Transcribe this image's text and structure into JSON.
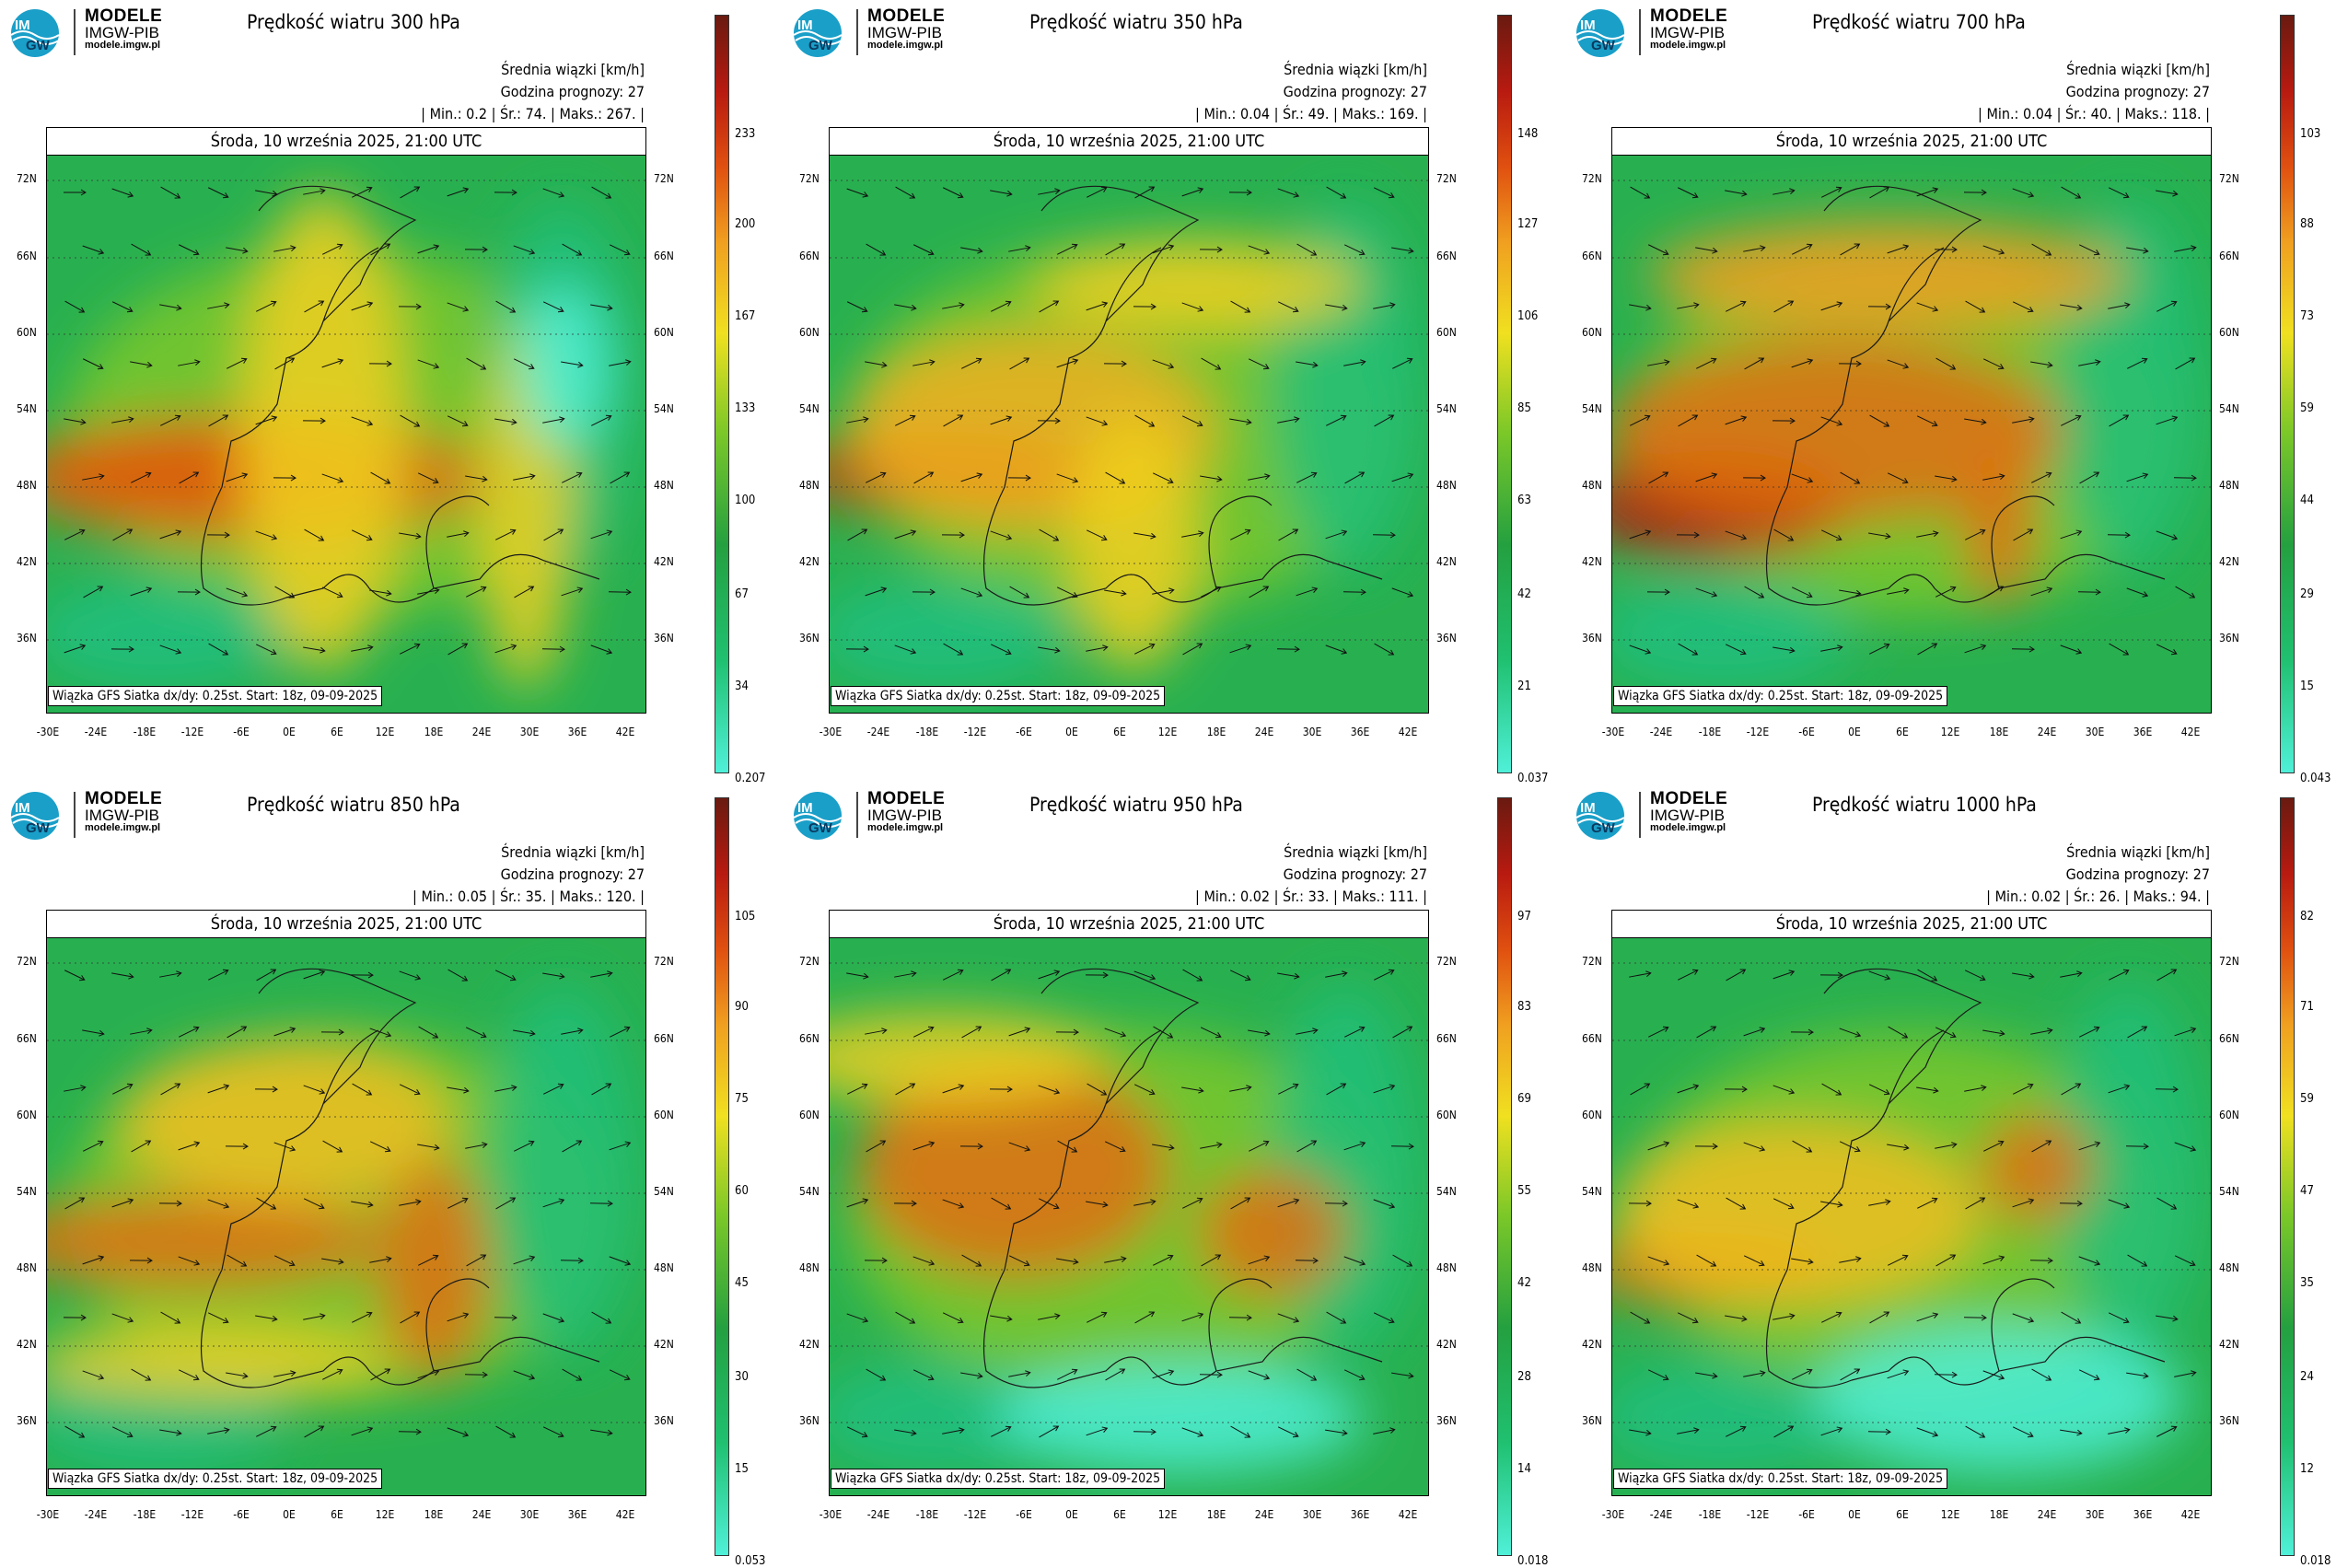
{
  "logo": {
    "line1": "MODELE",
    "line2": "IMGW-PIB",
    "line3": "modele.imgw.pl"
  },
  "common": {
    "units": "Średnia wiązki [km/h]",
    "forecast": "Godzina prognozy: 27",
    "date": "Środa, 10 września 2025, 21:00 UTC",
    "footer": "Wiązka GFS Siatka dx/dy: 0.25st. Start: 18z, 09-09-2025",
    "lat_labels": [
      "72N",
      "66N",
      "60N",
      "54N",
      "48N",
      "42N",
      "36N"
    ],
    "lon_labels": [
      "-30E",
      "-24E",
      "-18E",
      "-12E",
      "-6E",
      "0E",
      "6E",
      "12E",
      "18E",
      "24E",
      "30E",
      "36E",
      "42E"
    ]
  },
  "panels": [
    {
      "title": "Prędkość wiatru 300 hPa",
      "stats": "| Min.: 0.2 | Śr.: 74. | Maks.: 267. |",
      "ticks": [
        "233",
        "200",
        "167",
        "133",
        "100",
        "67",
        "34",
        "0.207"
      ]
    },
    {
      "title": "Prędkość wiatru 350 hPa",
      "stats": "| Min.: 0.04 | Śr.: 49. | Maks.: 169. |",
      "ticks": [
        "148",
        "127",
        "106",
        "85",
        "63",
        "42",
        "21",
        "0.037"
      ]
    },
    {
      "title": "Prędkość wiatru 700 hPa",
      "stats": "| Min.: 0.04 | Śr.: 40. | Maks.: 118. |",
      "ticks": [
        "103",
        "88",
        "73",
        "59",
        "44",
        "29",
        "15",
        "0.043"
      ]
    },
    {
      "title": "Prędkość wiatru 850 hPa",
      "stats": "| Min.: 0.05 | Śr.: 35. | Maks.: 120. |",
      "ticks": [
        "105",
        "90",
        "75",
        "60",
        "45",
        "30",
        "15",
        "0.053"
      ]
    },
    {
      "title": "Prędkość wiatru 950 hPa",
      "stats": "| Min.: 0.02 | Śr.: 33. | Maks.: 111. |",
      "ticks": [
        "97",
        "83",
        "69",
        "55",
        "42",
        "28",
        "14",
        "0.018"
      ]
    },
    {
      "title": "Prędkość wiatru 1000 hPa",
      "stats": "| Min.: 0.02 | Śr.: 26. | Maks.: 94. |",
      "ticks": [
        "82",
        "71",
        "59",
        "47",
        "35",
        "24",
        "12",
        "0.018"
      ]
    }
  ],
  "colors": {
    "low": "#4ff0d8",
    "mid": "#24a040",
    "high": "#f0e020",
    "max": "#b81a10"
  }
}
